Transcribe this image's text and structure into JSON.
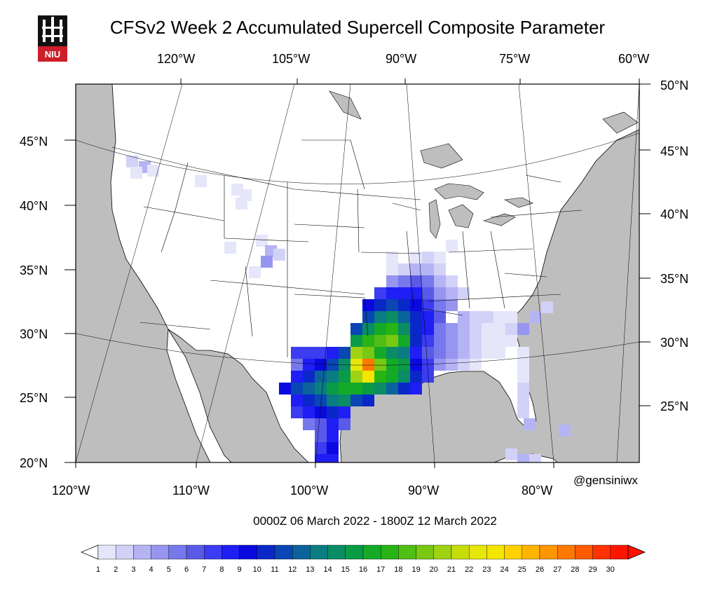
{
  "title": "CFSv2 Week 2 Accumulated Supercell Composite Parameter",
  "logo_text": "NIU",
  "credit": "@gensiniwx",
  "period": "0000Z 06  March  2022  - 1800Z 12  March  2022",
  "top_lon_labels": [
    "120°W",
    "105°W",
    "90°W",
    "75°W",
    "60°W"
  ],
  "bottom_lon_labels": [
    "120°W",
    "110°W",
    "100°W",
    "90°W",
    "80°W"
  ],
  "left_lat_labels": [
    "45°N",
    "40°N",
    "35°N",
    "30°N",
    "25°N",
    "20°N"
  ],
  "right_lat_labels": [
    "50°N",
    "45°N",
    "40°N",
    "35°N",
    "30°N",
    "25°N"
  ],
  "colorbar": {
    "ticks": [
      "1",
      "2",
      "3",
      "4",
      "5",
      "6",
      "7",
      "8",
      "9",
      "10",
      "11",
      "12",
      "13",
      "14",
      "15",
      "16",
      "17",
      "18",
      "19",
      "20",
      "21",
      "22",
      "23",
      "24",
      "25",
      "26",
      "27",
      "28",
      "29",
      "30"
    ],
    "colors": [
      "#e6e6fa",
      "#d2d2f8",
      "#b4b4f5",
      "#9696f0",
      "#7878ed",
      "#5a5ae8",
      "#3c3cf0",
      "#1e1ef5",
      "#0a0ae0",
      "#0a28c8",
      "#0a46b4",
      "#0a649b",
      "#0a7d82",
      "#0a8c64",
      "#0a9b46",
      "#14aa28",
      "#28b414",
      "#50be14",
      "#78c814",
      "#a0d214",
      "#c8dc0a",
      "#e6e60a",
      "#f5e600",
      "#ffd200",
      "#ffb400",
      "#ff9600",
      "#ff7800",
      "#ff5a00",
      "#ff3200",
      "#ff1400"
    ]
  },
  "colors": {
    "land": "#ffffff",
    "water": "#bebebe",
    "border": "#000000"
  }
}
